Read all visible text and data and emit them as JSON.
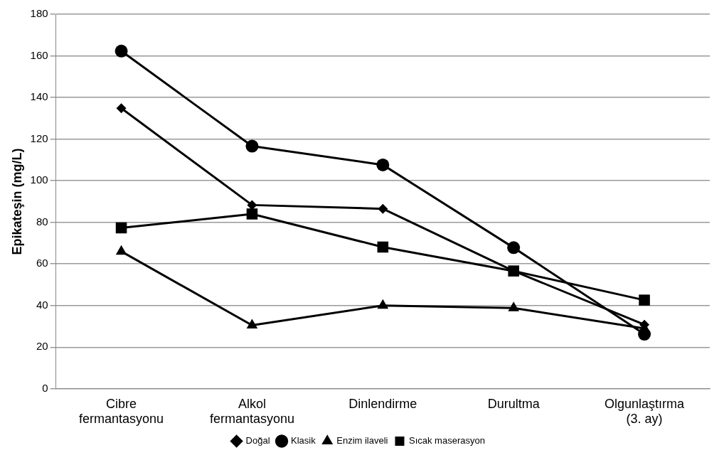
{
  "chart_data": {
    "type": "line",
    "ylabel": "Epikateşin (mg/L)",
    "categories": [
      "Cibre\nfermantasyonu",
      "Alkol\nfermantasyonu",
      "Dinlendirme",
      "Durultma",
      "Olgunlaştırma\n(3. ay)"
    ],
    "series": [
      {
        "name": "Doğal",
        "color": "#000000",
        "marker": "diamond",
        "values": [
          134.8,
          88.3,
          86.5,
          56.6,
          30.8
        ]
      },
      {
        "name": "Klasik",
        "color": "#000000",
        "marker": "circle",
        "values": [
          162.3,
          116.6,
          107.6,
          67.8,
          26.2
        ]
      },
      {
        "name": "Enzim ilaveli",
        "color": "#000000",
        "marker": "triangle",
        "values": [
          66,
          30.5,
          40,
          38.8,
          29
        ]
      },
      {
        "name": "Sıcak maserasyon",
        "color": "#000000",
        "marker": "square",
        "values": [
          77.3,
          84,
          68.1,
          56.6,
          42.6
        ]
      }
    ],
    "ylim": [
      0,
      180
    ],
    "yticks": [
      0,
      20,
      40,
      60,
      80,
      100,
      120,
      140,
      160,
      180
    ],
    "grid": "y",
    "legend": "bottom",
    "line_style": "solid"
  }
}
